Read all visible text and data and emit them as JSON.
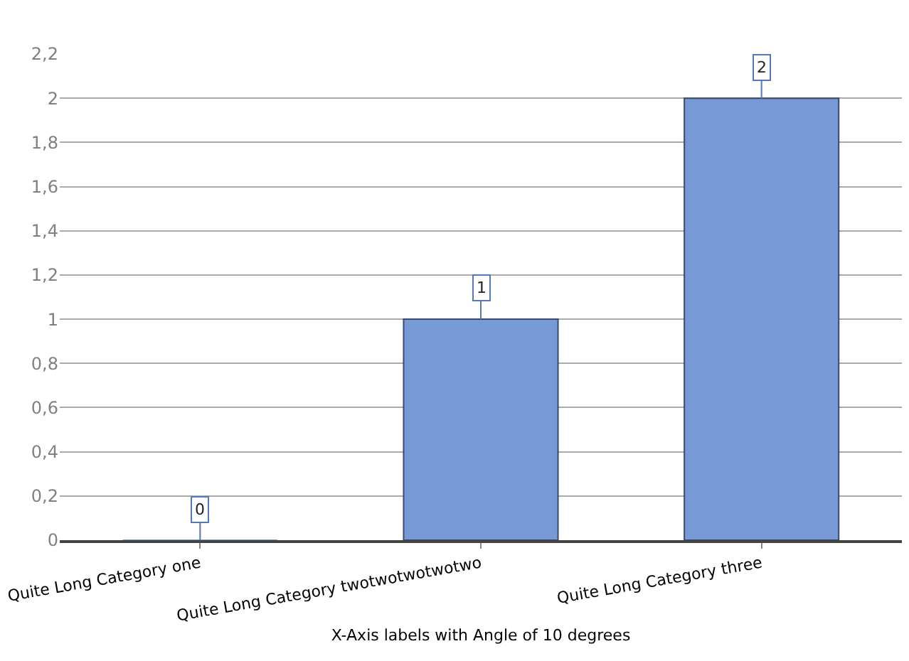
{
  "chart_data": {
    "type": "bar",
    "xlabel": "X-Axis labels with Angle of 10 degrees",
    "categories": [
      "Quite Long Category one",
      "Quite Long Category twotwotwotwotwo",
      "Quite Long Category three"
    ],
    "values": [
      0,
      1,
      2
    ],
    "color": "#7799d6",
    "ylim": [
      0,
      2.2
    ],
    "yticks": [
      0,
      {
        "value": 0.2,
        "label": "0,2"
      },
      {
        "value": 0.4,
        "label": "0,4"
      },
      {
        "value": 0.6,
        "label": "0,6"
      },
      {
        "value": 0.8,
        "label": "0,8"
      },
      1,
      {
        "value": 1.2,
        "label": "1,2"
      },
      {
        "value": 1.4,
        "label": "1,4"
      },
      {
        "value": 1.6,
        "label": "1,6"
      },
      {
        "value": 1.8,
        "label": "1,8"
      },
      2,
      {
        "value": 2.2,
        "label": "2,2"
      }
    ],
    "grid": "y",
    "data_labels": true,
    "legend": false
  }
}
